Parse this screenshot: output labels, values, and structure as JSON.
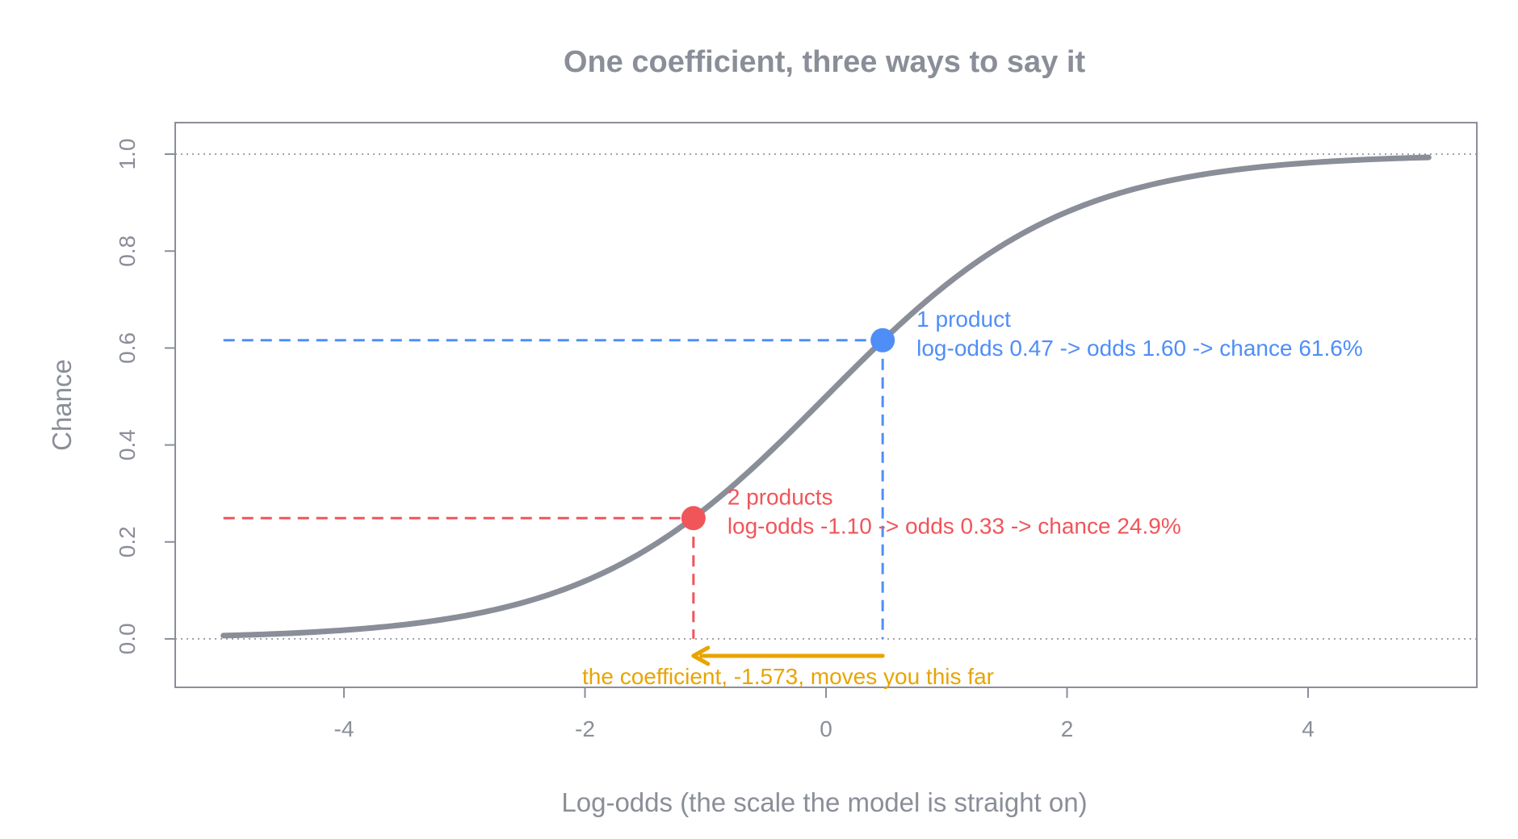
{
  "chart_data": {
    "type": "line",
    "title": "One coefficient, three ways to say it",
    "xlabel": "Log-odds  (the scale the model is straight on)",
    "ylabel": "Chance",
    "xlim": [
      -5.4,
      5.4
    ],
    "ylim": [
      -0.1,
      1.065
    ],
    "x_ticks": [
      -4,
      -2,
      0,
      2,
      4
    ],
    "x_tick_labels": [
      "-4",
      "-2",
      "0",
      "2",
      "4"
    ],
    "y_ticks": [
      0.0,
      0.2,
      0.4,
      0.6,
      0.8,
      1.0
    ],
    "y_tick_labels": [
      "0.0",
      "0.2",
      "0.4",
      "0.6",
      "0.8",
      "1.0"
    ],
    "reference_lines": [
      0,
      1
    ],
    "curve": {
      "function": "logistic",
      "x_range": [
        -5,
        5
      ],
      "color": "#8a8e98"
    },
    "points": [
      {
        "x": 0.47,
        "y": 0.616,
        "color": "#4f8ef7",
        "label_line1": "1 product",
        "label_line2": "log-odds 0.47  ->  odds 1.60  ->  chance 61.6%"
      },
      {
        "x": -1.1,
        "y": 0.249,
        "color": "#f0555a",
        "label_line1": "2 products",
        "label_line2": "log-odds -1.10  ->  odds 0.33  ->  chance 24.9%"
      }
    ],
    "arrow": {
      "from_x": 0.47,
      "to_x": -1.1,
      "y": -0.035,
      "color": "#e8a400",
      "label": "the coefficient, -1.573, moves you this far"
    },
    "grid": false,
    "legend": "none"
  }
}
